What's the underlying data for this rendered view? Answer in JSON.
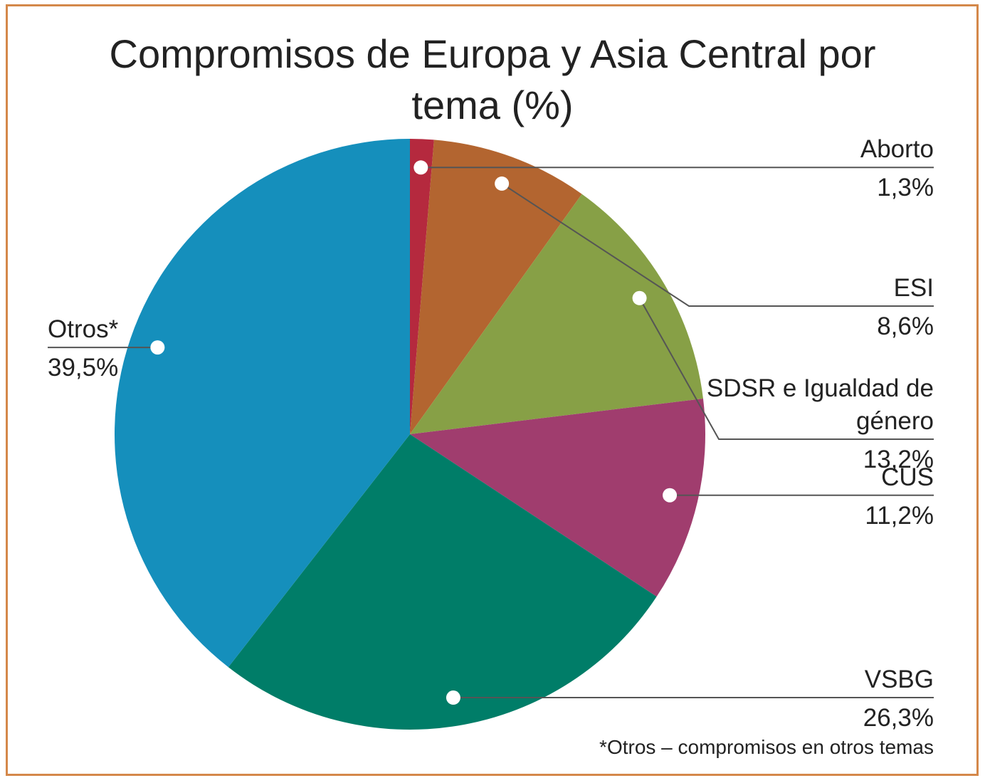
{
  "chart_data": {
    "type": "pie",
    "title": "Compromisos de Europa y Asia Central por tema (%)",
    "categories": [
      "Aborto",
      "ESI",
      "SDSR e Igualdad de género",
      "CUS",
      "VSBG",
      "Otros*"
    ],
    "values": [
      1.3,
      8.6,
      13.2,
      11.2,
      26.3,
      39.5
    ],
    "value_labels": [
      "1,3%",
      "8,6%",
      "13,2%",
      "11,2%",
      "26,3%",
      "39,5%"
    ],
    "colors": [
      "#b5293e",
      "#b36530",
      "#87a046",
      "#a03d6e",
      "#007d68",
      "#158fbc"
    ],
    "footnote": "*Otros – compromisos en otros temas"
  }
}
